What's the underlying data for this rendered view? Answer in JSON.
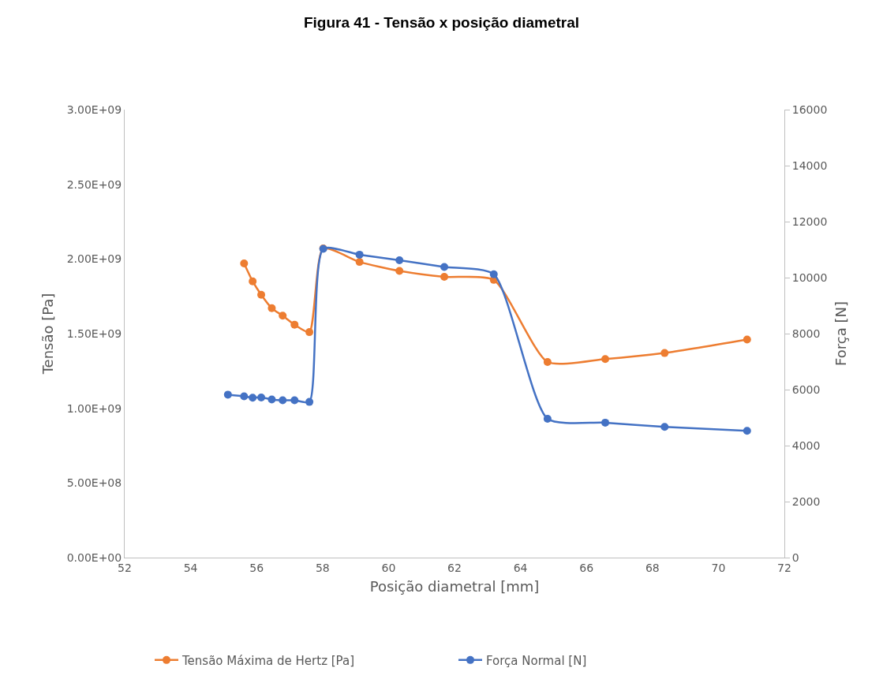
{
  "chart_data": {
    "type": "line",
    "title": "Figura 41 - Tensão x posição diametral",
    "xlabel": "Posição diametral [mm]",
    "ylabel": "Tensão [Pa]",
    "y2label": "Força [N]",
    "x": [
      55.13,
      55.62,
      55.88,
      56.14,
      56.46,
      56.79,
      57.15,
      57.6,
      58.02,
      59.12,
      60.33,
      61.69,
      63.19,
      64.82,
      66.57,
      68.37,
      70.87
    ],
    "series": [
      {
        "name": "Tensão Máxima de Hertz [Pa]",
        "color": "#ed7d31",
        "values": [
          null,
          1970000000.0,
          1850000000.0,
          1760000000.0,
          1670000000.0,
          1620000000.0,
          1560000000.0,
          1510000000.0,
          2070000000.0,
          1980000000.0,
          1920000000.0,
          1880000000.0,
          1860000000.0,
          1310000000.0,
          1330000000.0,
          1370000000.0,
          1460000000.0
        ]
      },
      {
        "name": "Força Normal [N]",
        "color": "#4472c4",
        "axis": "y2",
        "values": [
          5820,
          5760,
          5710,
          5720,
          5650,
          5620,
          5620,
          5560,
          11030,
          10820,
          10620,
          10380,
          10120,
          4960,
          4820,
          4670,
          4530
        ]
      }
    ],
    "xlim": [
      52,
      72
    ],
    "xticks": [
      52,
      54,
      56,
      58,
      60,
      62,
      64,
      66,
      68,
      70,
      72
    ],
    "ylim": [
      0,
      3000000000.0
    ],
    "yticks": [
      {
        "value": 0,
        "label": "0.00E+00"
      },
      {
        "value": 500000000.0,
        "label": "5.00E+08"
      },
      {
        "value": 1000000000.0,
        "label": "1.00E+09"
      },
      {
        "value": 1500000000.0,
        "label": "1.50E+09"
      },
      {
        "value": 2000000000.0,
        "label": "2.00E+09"
      },
      {
        "value": 2500000000.0,
        "label": "2.50E+09"
      },
      {
        "value": 3000000000.0,
        "label": "3.00E+09"
      }
    ],
    "y2lim": [
      0,
      16000
    ],
    "y2ticks": [
      0,
      2000,
      4000,
      6000,
      8000,
      10000,
      12000,
      14000,
      16000
    ],
    "grid": false,
    "legend": "bottom",
    "marker": "circle",
    "line_style": "solid"
  }
}
